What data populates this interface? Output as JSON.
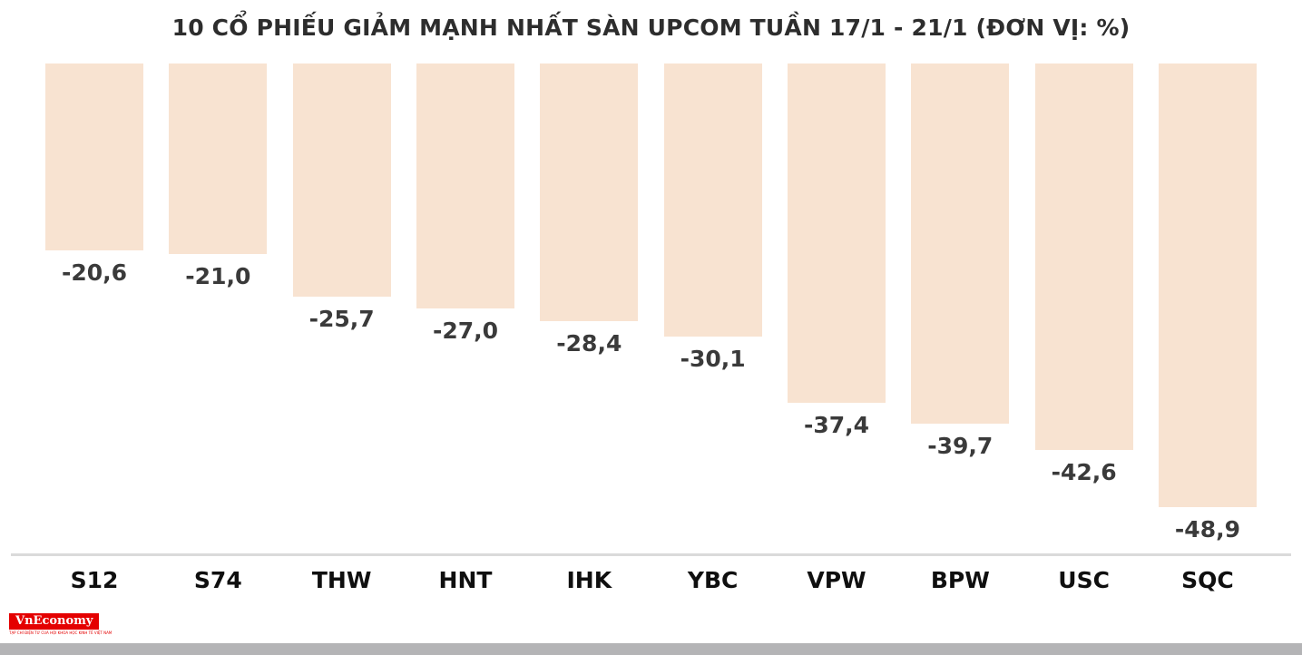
{
  "chart_data": {
    "type": "bar",
    "title": "10 CỔ PHIẾU GIẢM MẠNH NHẤT SÀN UPCOM TUẦN 17/1 - 21/1 (ĐƠN VỊ: %)",
    "unit": "%",
    "categories": [
      "S12",
      "S74",
      "THW",
      "HNT",
      "IHK",
      "YBC",
      "VPW",
      "BPW",
      "USC",
      "SQC"
    ],
    "values": [
      -20.6,
      -21.0,
      -25.7,
      -27.0,
      -28.4,
      -30.1,
      -37.4,
      -39.7,
      -42.6,
      -48.9
    ],
    "value_labels": [
      "-20,6",
      "-21,0",
      "-25,7",
      "-27,0",
      "-28,4",
      "-30,1",
      "-37,4",
      "-39,7",
      "-42,6",
      "-48,9"
    ],
    "ylim": [
      -50,
      0
    ],
    "bar_color": "#f8e3d1",
    "orientation": "bars-hang-from-top",
    "legend": "none",
    "grid": false
  },
  "footer": {
    "logo_text": "VnEconomy",
    "logo_tagline": "TẠP CHÍ ĐIỆN TỬ CỦA HỘI KHOA HỌC KINH TẾ VIỆT NAM"
  }
}
